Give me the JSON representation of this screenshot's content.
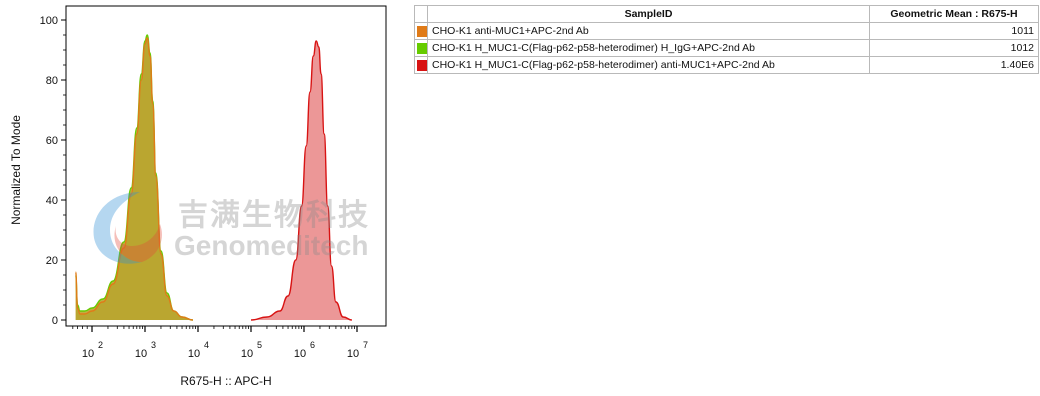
{
  "chart_data": {
    "type": "histogram-overlay",
    "xlabel": "R675-H :: APC-H",
    "ylabel": "Normalized To Mode",
    "x_scale": "biexponential",
    "x_ticks": [
      {
        "label": "10",
        "exp": "2",
        "value": 100
      },
      {
        "label": "10",
        "exp": "3",
        "value": 1000
      },
      {
        "label": "10",
        "exp": "4",
        "value": 10000
      },
      {
        "label": "10",
        "exp": "5",
        "value": 100000
      },
      {
        "label": "10",
        "exp": "6",
        "value": 1000000
      },
      {
        "label": "10",
        "exp": "7",
        "value": 10000000
      }
    ],
    "y_ticks": [
      0,
      20,
      40,
      60,
      80,
      100
    ],
    "ylim": [
      0,
      100
    ],
    "series": [
      {
        "name": "CHO-K1 anti-MUC1+APC-2nd Ab",
        "color": "#e07b18",
        "fill": "#b9a52f",
        "x": [
          32,
          40,
          50,
          70,
          100,
          160,
          250,
          400,
          550,
          700,
          850,
          1000,
          1100,
          1250,
          1400,
          1600,
          2000,
          2600,
          3500,
          5000,
          8000
        ],
        "y": [
          16,
          4,
          2,
          2,
          3,
          6,
          12,
          24,
          42,
          62,
          80,
          92,
          94,
          88,
          72,
          48,
          22,
          8,
          3,
          1,
          0
        ]
      },
      {
        "name": "CHO-K1 H_MUC1-C(Flag-p62-p58-heterodimer) H_IgG+APC-2nd Ab",
        "color": "#66cc00",
        "fill": "#b9a52f",
        "x": [
          32,
          40,
          50,
          70,
          100,
          160,
          250,
          400,
          550,
          700,
          850,
          1000,
          1100,
          1250,
          1400,
          1600,
          2000,
          2600,
          3500,
          5000,
          8000
        ],
        "y": [
          15,
          5,
          3,
          3,
          4,
          7,
          13,
          26,
          44,
          64,
          82,
          93,
          95,
          89,
          73,
          49,
          23,
          9,
          3,
          1,
          0
        ]
      },
      {
        "name": "CHO-K1 H_MUC1-C(Flag-p62-p58-heterodimer) anti-MUC1+APC-2nd Ab",
        "color": "#d81313",
        "fill": "#e98585",
        "x": [
          100000,
          200000,
          350000,
          500000,
          700000,
          900000,
          1100000,
          1300000,
          1500000,
          1700000,
          1900000,
          2100000,
          2400000,
          2800000,
          3300000,
          4000000,
          5500000,
          8000000
        ],
        "y": [
          0,
          1,
          3,
          8,
          20,
          38,
          58,
          76,
          88,
          93,
          91,
          82,
          62,
          38,
          18,
          6,
          1,
          0
        ]
      }
    ]
  },
  "legend_table": {
    "headers": [
      "SampleID",
      "Geometric Mean : R675-H"
    ],
    "rows": [
      {
        "color": "#e07b18",
        "sample": "CHO-K1 anti-MUC1+APC-2nd Ab",
        "value": "1011"
      },
      {
        "color": "#66cc00",
        "sample": "CHO-K1 H_MUC1-C(Flag-p62-p58-heterodimer) H_IgG+APC-2nd Ab",
        "value": "1012"
      },
      {
        "color": "#d81313",
        "sample": "CHO-K1 H_MUC1-C(Flag-p62-p58-heterodimer) anti-MUC1+APC-2nd Ab",
        "value": "1.40E6"
      }
    ]
  },
  "watermark": {
    "text_cn": "吉满生物科技",
    "text_en": "Genomeditech"
  }
}
